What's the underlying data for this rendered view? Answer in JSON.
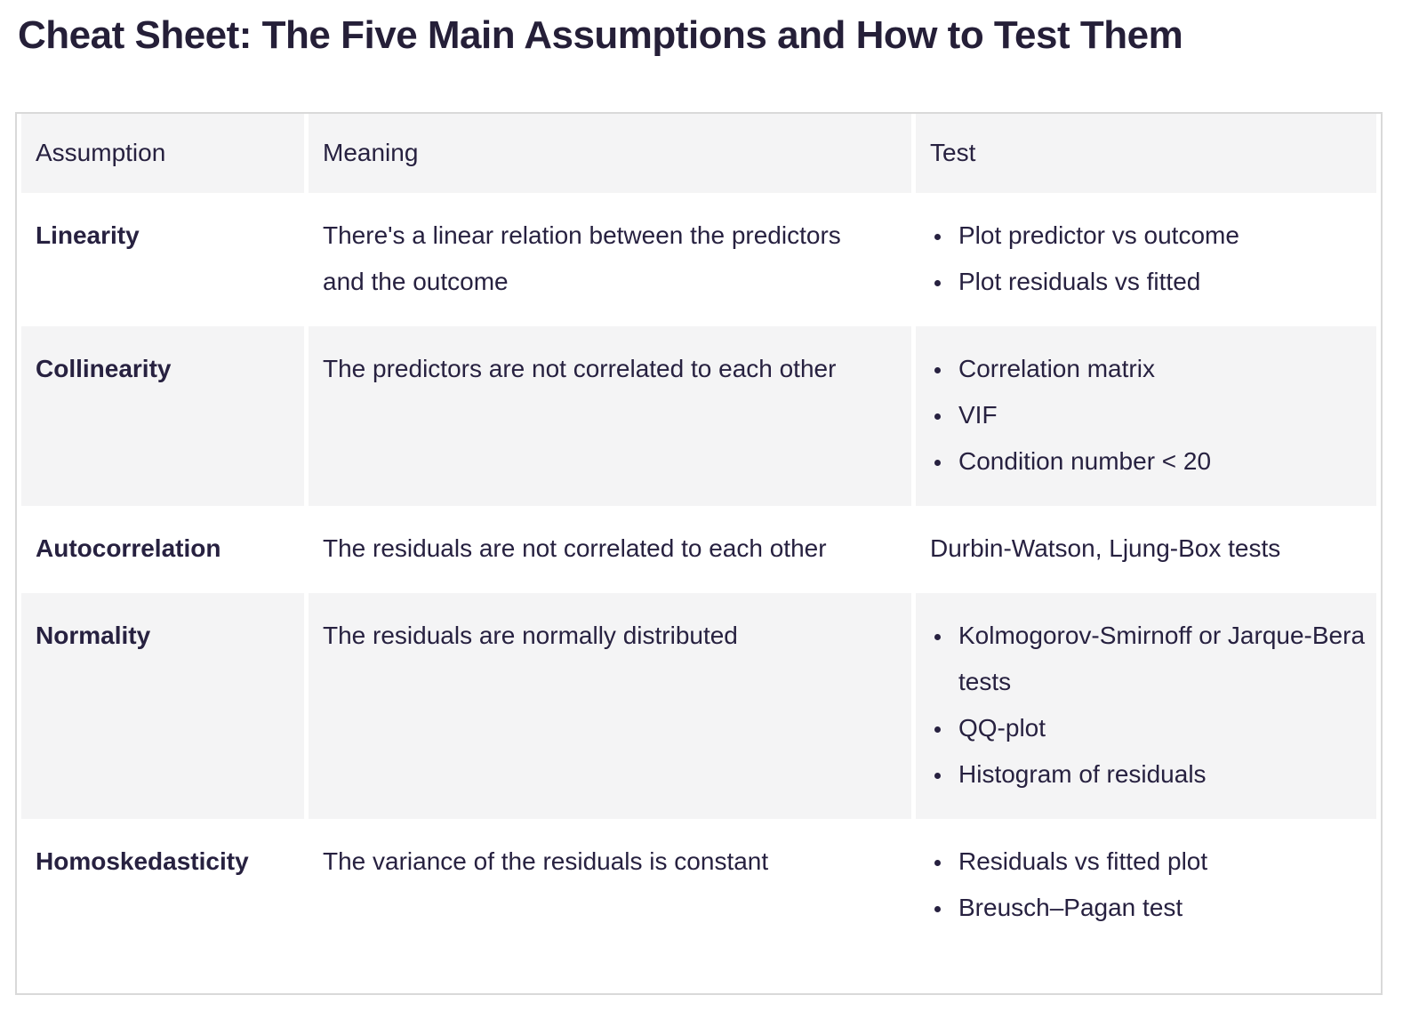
{
  "page": {
    "title": "Cheat Sheet: The Five Main Assumptions and How to Test Them"
  },
  "colors": {
    "text": "#272140",
    "title_text": "#251f38",
    "header_background": "#f4f4f5",
    "shaded_row_background": "#f4f4f5",
    "table_border": "#d9d9d9",
    "page_background": "#ffffff"
  },
  "table": {
    "columns": [
      "Assumption",
      "Meaning",
      "Test"
    ],
    "rows": [
      {
        "assumption": "Linearity",
        "meaning": "There's a linear relation between the predictors and the outcome",
        "tests": [
          "Plot predictor vs outcome",
          "Plot residuals vs fitted"
        ]
      },
      {
        "assumption": "Collinearity",
        "meaning": "The predictors are not correlated to each other",
        "tests": [
          "Correlation matrix",
          "VIF",
          "Condition number < 20"
        ]
      },
      {
        "assumption": "Autocorrelation",
        "meaning": "The residuals are not correlated to each other",
        "test_text": "Durbin-Watson, Ljung-Box tests"
      },
      {
        "assumption": "Normality",
        "meaning": "The residuals are normally distributed",
        "tests": [
          "Kolmogorov-Smirnoff or Jarque-Bera tests",
          "QQ-plot",
          "Histogram of residuals"
        ]
      },
      {
        "assumption": "Homoskedasticity",
        "meaning": "The variance of the residuals is constant",
        "tests": [
          "Residuals vs fitted plot",
          "Breusch–Pagan test"
        ]
      }
    ]
  }
}
